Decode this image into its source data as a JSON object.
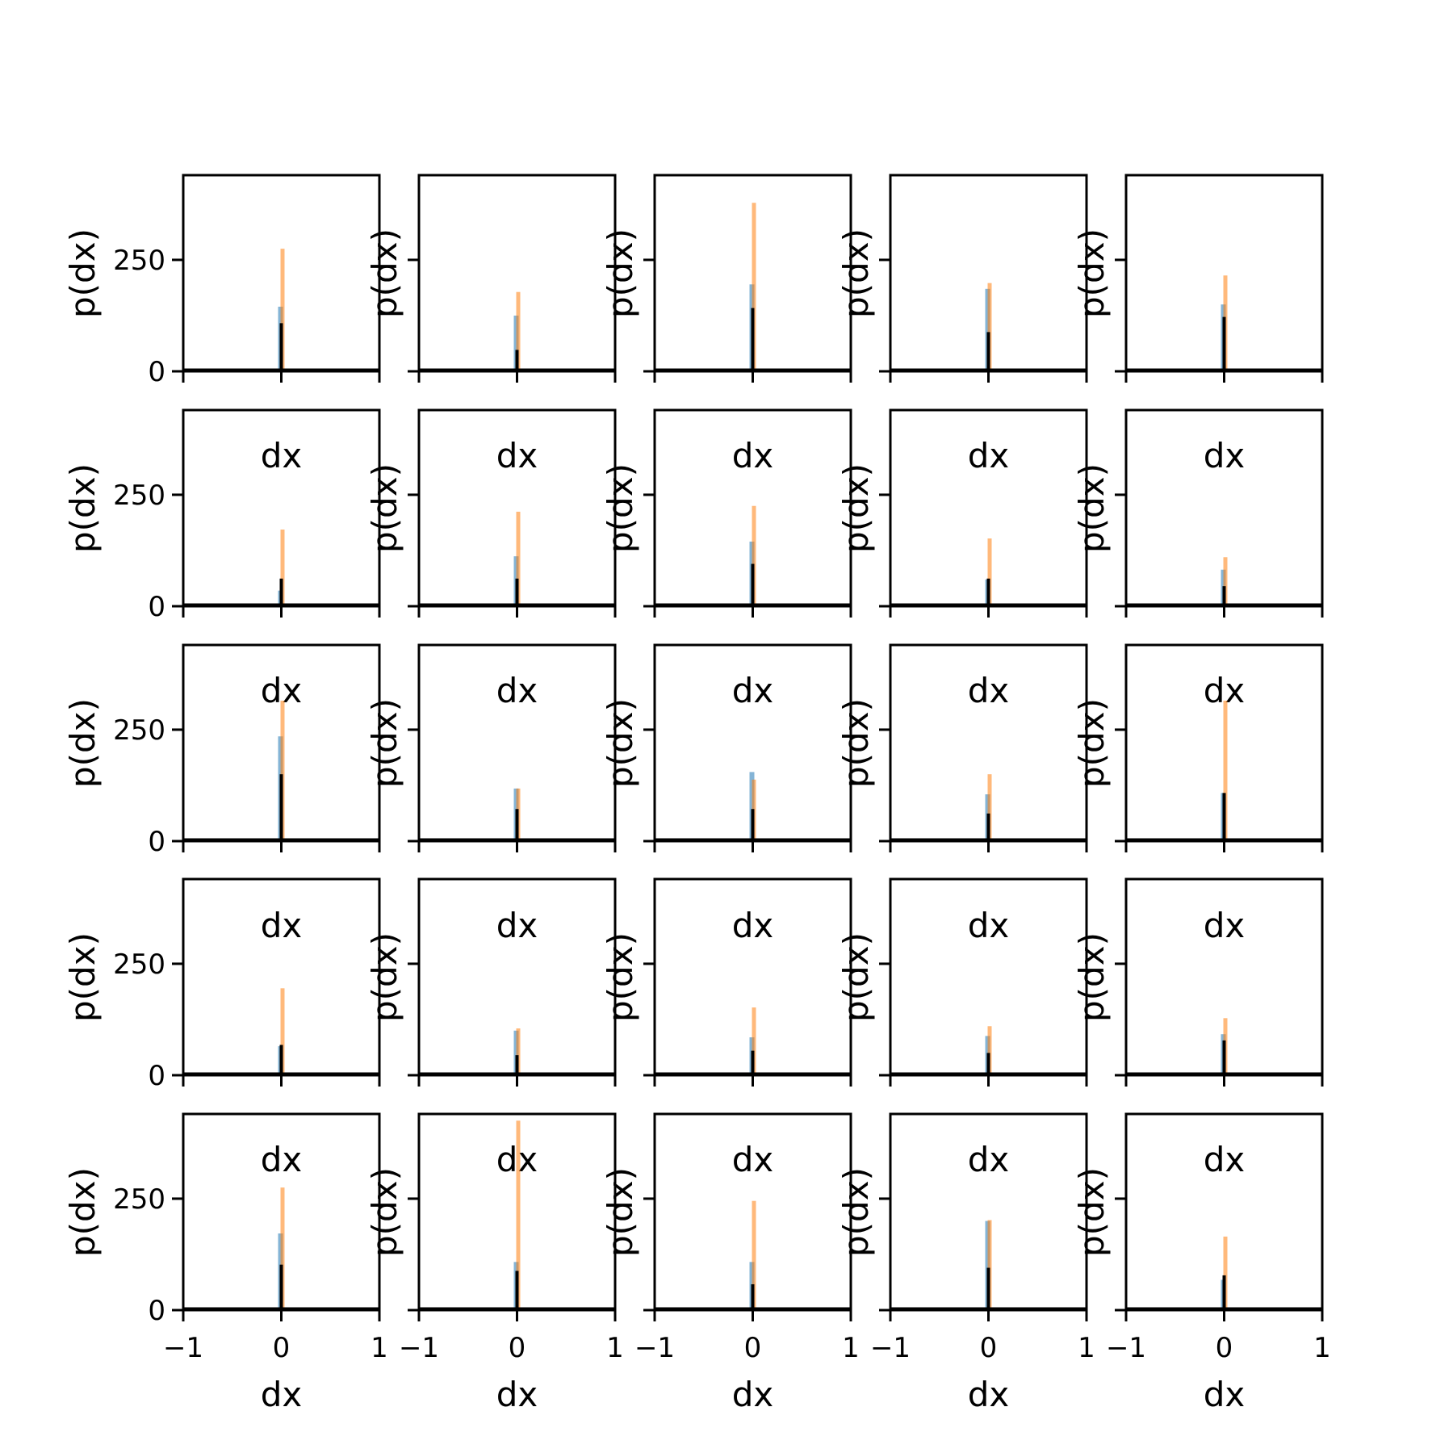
{
  "chart_data": {
    "type": "bar",
    "layout": {
      "rows": 5,
      "cols": 5
    },
    "xlabel": "dx",
    "ylabel": "p(dx)",
    "xlim": [
      -1,
      1
    ],
    "ylim": [
      0,
      440
    ],
    "xticks": [
      -1,
      0,
      1
    ],
    "xtick_labels": [
      "−1",
      "0",
      "1"
    ],
    "yticks": [
      0,
      250
    ],
    "ytick_labels": [
      "0",
      "250"
    ],
    "colors": {
      "series_a": "#1f77b4",
      "series_b": "#ff7f0e",
      "series_c": "#000000"
    },
    "panels": [
      {
        "a": 145,
        "b": 275,
        "c": 108
      },
      {
        "a": 125,
        "b": 178,
        "c": 48
      },
      {
        "a": 195,
        "b": 378,
        "c": 142
      },
      {
        "a": 185,
        "b": 198,
        "c": 88
      },
      {
        "a": 150,
        "b": 215,
        "c": 122
      },
      {
        "a": 35,
        "b": 172,
        "c": 62
      },
      {
        "a": 112,
        "b": 212,
        "c": 62
      },
      {
        "a": 145,
        "b": 225,
        "c": 95
      },
      {
        "a": 60,
        "b": 152,
        "c": 62
      },
      {
        "a": 82,
        "b": 110,
        "c": 45
      },
      {
        "a": 235,
        "b": 315,
        "c": 150
      },
      {
        "a": 118,
        "b": 118,
        "c": 72
      },
      {
        "a": 155,
        "b": 138,
        "c": 72
      },
      {
        "a": 105,
        "b": 150,
        "c": 62
      },
      {
        "a": 108,
        "b": 315,
        "c": 108
      },
      {
        "a": 65,
        "b": 195,
        "c": 68
      },
      {
        "a": 100,
        "b": 105,
        "c": 45
      },
      {
        "a": 85,
        "b": 152,
        "c": 55
      },
      {
        "a": 88,
        "b": 110,
        "c": 50
      },
      {
        "a": 92,
        "b": 128,
        "c": 78
      },
      {
        "a": 172,
        "b": 275,
        "c": 102
      },
      {
        "a": 108,
        "b": 425,
        "c": 88
      },
      {
        "a": 108,
        "b": 245,
        "c": 58
      },
      {
        "a": 200,
        "b": 202,
        "c": 95
      },
      {
        "a": 68,
        "b": 165,
        "c": 78
      }
    ]
  }
}
